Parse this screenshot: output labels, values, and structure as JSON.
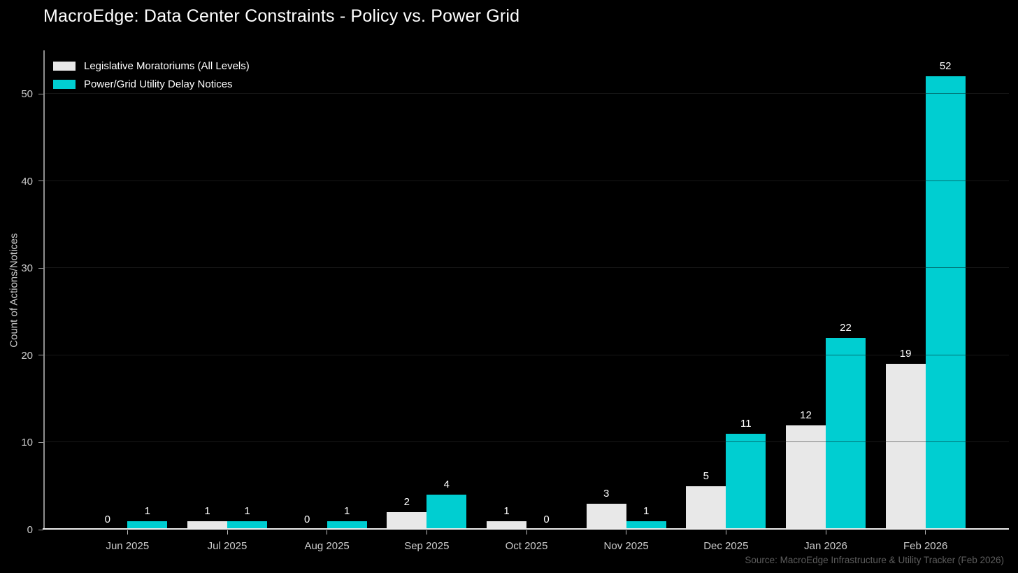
{
  "title": "MacroEdge: Data Center Constraints - Policy vs. Power Grid",
  "source_note": "Source: MacroEdge Infrastructure & Utility Tracker (Feb 2026)",
  "colors": {
    "background": "#000000",
    "bar_gray": "#e8e8e8",
    "bar_cyan": "#00ced1",
    "grid_line": "#2b2b2b",
    "tick_text": "#cccccc",
    "value_text": "#ffffff",
    "source_text": "#5d5d5d"
  },
  "chart_data": {
    "type": "bar",
    "title": "MacroEdge: Data Center Constraints - Policy vs. Power Grid",
    "categories": [
      "Jun 2025",
      "Jul 2025",
      "Aug 2025",
      "Sep 2025",
      "Oct 2025",
      "Nov 2025",
      "Dec 2025",
      "Jan 2026",
      "Feb 2026"
    ],
    "series": [
      {
        "name": "Legislative Moratoriums (All Levels)",
        "color": "#e8e8e8",
        "values": [
          0,
          1,
          0,
          2,
          1,
          3,
          5,
          12,
          19
        ]
      },
      {
        "name": "Power/Grid Utility Delay Notices",
        "color": "#00ced1",
        "values": [
          1,
          1,
          1,
          4,
          0,
          1,
          11,
          22,
          52
        ]
      }
    ],
    "xlabel": "",
    "ylabel": "Count of Actions/Notices",
    "ylim": [
      0,
      55
    ],
    "yticks": [
      0,
      10,
      20,
      30,
      40,
      50
    ],
    "grid": "horizontal",
    "legend_position": "top-left",
    "bar_value_labels": true
  }
}
